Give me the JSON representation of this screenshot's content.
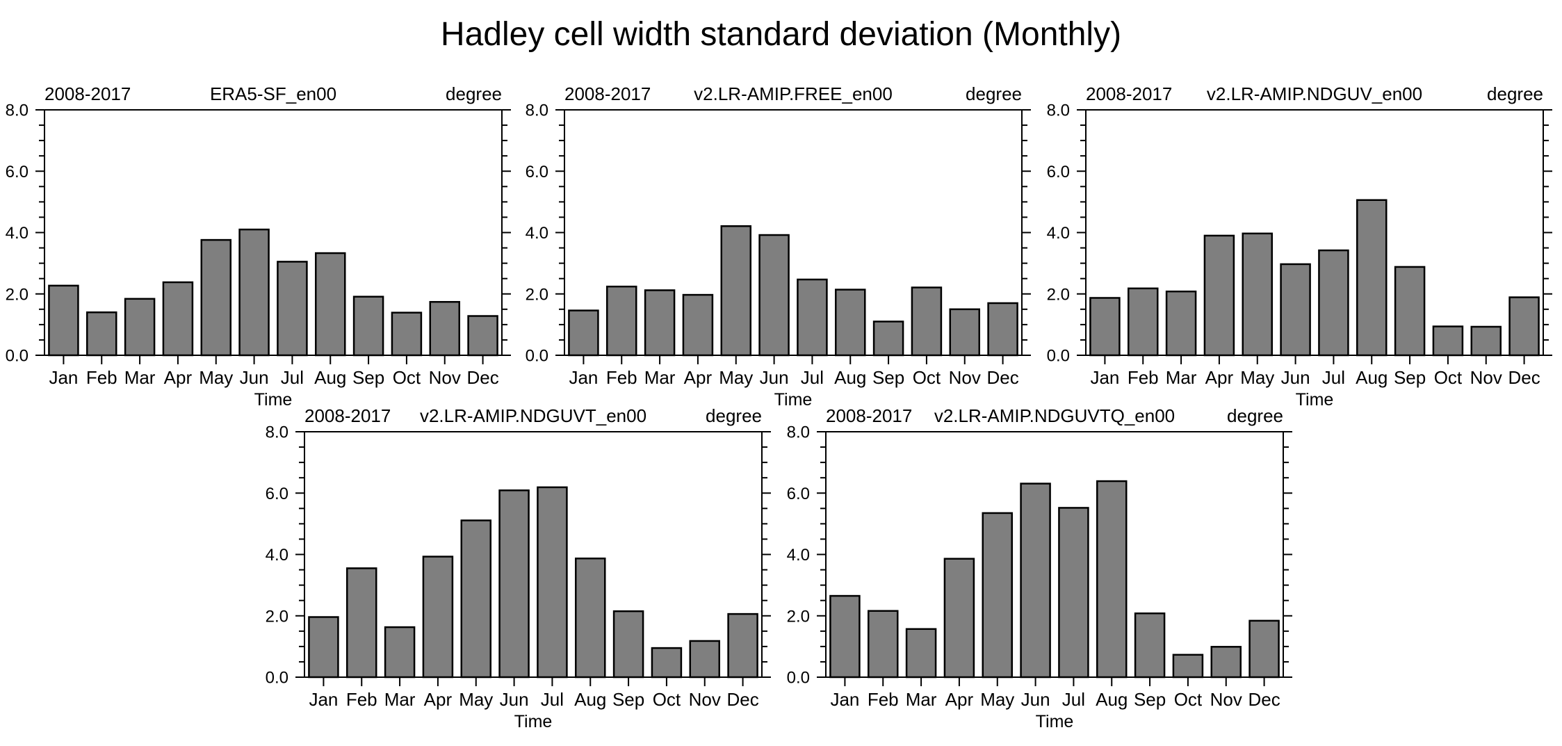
{
  "page_title": "Hadley cell width standard deviation (Monthly)",
  "bar_fill_color": "#7f7f7f",
  "bar_border_color": "#000000",
  "axis_color": "#000000",
  "chart_data": [
    {
      "type": "bar",
      "period": "2008-2017",
      "title": "ERA5-SF_en00",
      "unit": "degree",
      "xlabel": "Time",
      "ylabel_ticks": [
        "0.0",
        "2.0",
        "4.0",
        "6.0",
        "8.0"
      ],
      "ylim": [
        0,
        8
      ],
      "ytick_step": 2,
      "yminor_step": 0.5,
      "grid": false,
      "categories": [
        "Jan",
        "Feb",
        "Mar",
        "Apr",
        "May",
        "Jun",
        "Jul",
        "Aug",
        "Sep",
        "Oct",
        "Nov",
        "Dec"
      ],
      "values": [
        2.27,
        1.4,
        1.84,
        2.38,
        3.76,
        4.1,
        3.05,
        3.33,
        1.91,
        1.39,
        1.74,
        1.28
      ]
    },
    {
      "type": "bar",
      "period": "2008-2017",
      "title": "v2.LR-AMIP.FREE_en00",
      "unit": "degree",
      "xlabel": "Time",
      "ylabel_ticks": [
        "0.0",
        "2.0",
        "4.0",
        "6.0",
        "8.0"
      ],
      "ylim": [
        0,
        8
      ],
      "ytick_step": 2,
      "yminor_step": 0.5,
      "grid": false,
      "categories": [
        "Jan",
        "Feb",
        "Mar",
        "Apr",
        "May",
        "Jun",
        "Jul",
        "Aug",
        "Sep",
        "Oct",
        "Nov",
        "Dec"
      ],
      "values": [
        1.46,
        2.24,
        2.12,
        1.97,
        4.21,
        3.92,
        2.47,
        2.14,
        1.1,
        2.21,
        1.5,
        1.7
      ]
    },
    {
      "type": "bar",
      "period": "2008-2017",
      "title": "v2.LR-AMIP.NDGUV_en00",
      "unit": "degree",
      "xlabel": "Time",
      "ylabel_ticks": [
        "0.0",
        "2.0",
        "4.0",
        "6.0",
        "8.0"
      ],
      "ylim": [
        0,
        8
      ],
      "ytick_step": 2,
      "yminor_step": 0.5,
      "grid": false,
      "categories": [
        "Jan",
        "Feb",
        "Mar",
        "Apr",
        "May",
        "Jun",
        "Jul",
        "Aug",
        "Sep",
        "Oct",
        "Nov",
        "Dec"
      ],
      "values": [
        1.87,
        2.18,
        2.08,
        3.9,
        3.97,
        2.97,
        3.42,
        5.06,
        2.88,
        0.94,
        0.93,
        1.89
      ]
    },
    {
      "type": "bar",
      "period": "2008-2017",
      "title": "v2.LR-AMIP.NDGUVT_en00",
      "unit": "degree",
      "xlabel": "Time",
      "ylabel_ticks": [
        "0.0",
        "2.0",
        "4.0",
        "6.0",
        "8.0"
      ],
      "ylim": [
        0,
        8
      ],
      "ytick_step": 2,
      "yminor_step": 0.5,
      "grid": false,
      "categories": [
        "Jan",
        "Feb",
        "Mar",
        "Apr",
        "May",
        "Jun",
        "Jul",
        "Aug",
        "Sep",
        "Oct",
        "Nov",
        "Dec"
      ],
      "values": [
        1.96,
        3.55,
        1.63,
        3.93,
        5.11,
        6.09,
        6.19,
        3.87,
        2.15,
        0.95,
        1.18,
        2.06
      ]
    },
    {
      "type": "bar",
      "period": "2008-2017",
      "title": "v2.LR-AMIP.NDGUVTQ_en00",
      "unit": "degree",
      "xlabel": "Time",
      "ylabel_ticks": [
        "0.0",
        "2.0",
        "4.0",
        "6.0",
        "8.0"
      ],
      "ylim": [
        0,
        8
      ],
      "ytick_step": 2,
      "yminor_step": 0.5,
      "grid": false,
      "categories": [
        "Jan",
        "Feb",
        "Mar",
        "Apr",
        "May",
        "Jun",
        "Jul",
        "Aug",
        "Sep",
        "Oct",
        "Nov",
        "Dec"
      ],
      "values": [
        2.65,
        2.16,
        1.57,
        3.86,
        5.35,
        6.31,
        5.52,
        6.39,
        2.08,
        0.73,
        0.99,
        1.84
      ]
    }
  ]
}
